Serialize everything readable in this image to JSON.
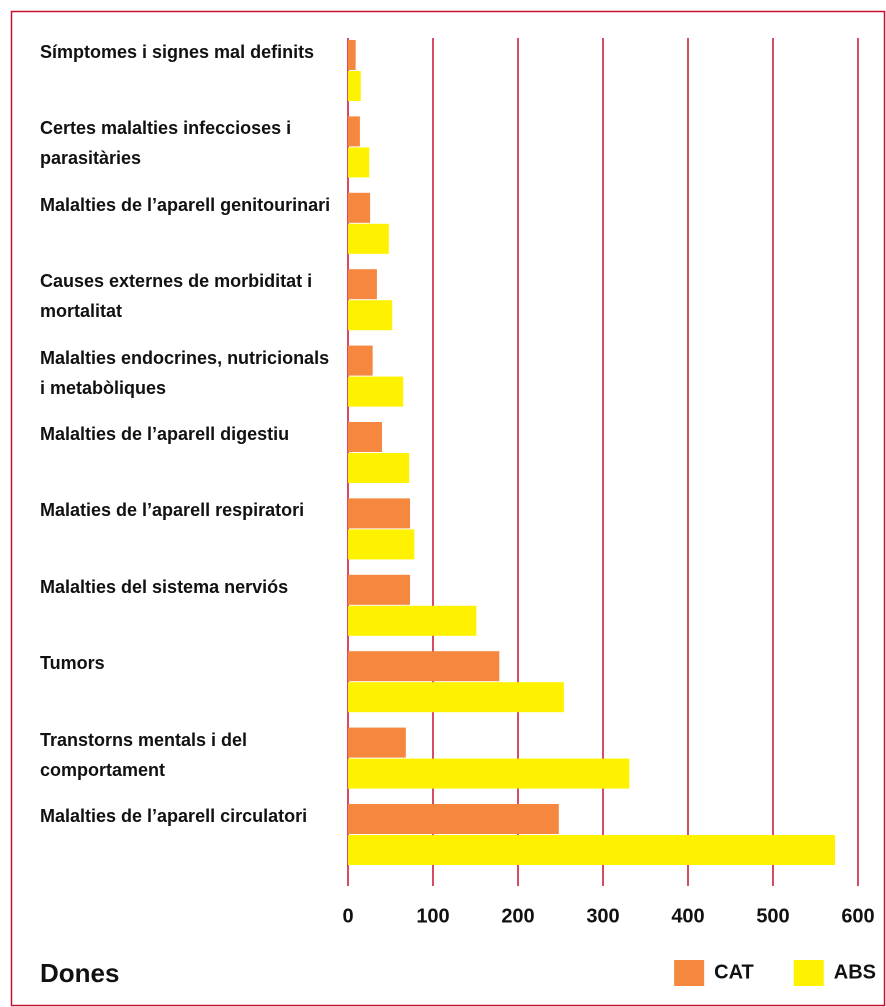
{
  "chart_data": {
    "type": "barh",
    "title": "Dones",
    "categories": [
      "Símptomes i signes mal definits",
      "Certes malalties infeccioses i parasitàries",
      "Malalties de l’aparell genitourinari",
      "Causes externes de morbiditat i mortalitat",
      "Malalties endocrines, nutricionals i metabòliques",
      "Malalties de l’aparell digestiu",
      "Malaties de l’aparell respiratori",
      "Malalties del sistema nerviós",
      "Tumors",
      "Transtorns mentals i del comportament",
      "Malalties de l’aparell circulatori"
    ],
    "series": [
      {
        "name": "CAT",
        "color": "#f5873f",
        "values": [
          9,
          14,
          26,
          34,
          29,
          40,
          73,
          73,
          178,
          68,
          248
        ]
      },
      {
        "name": "ABS",
        "color": "#fff200",
        "values": [
          15,
          25,
          48,
          52,
          65,
          72,
          78,
          151,
          254,
          331,
          573
        ]
      }
    ],
    "xlim": [
      0,
      600
    ],
    "xticks": [
      0,
      100,
      200,
      300,
      400,
      500,
      600
    ],
    "grid": true,
    "grid_color": "#c8102e",
    "legend": "bottom-right"
  }
}
